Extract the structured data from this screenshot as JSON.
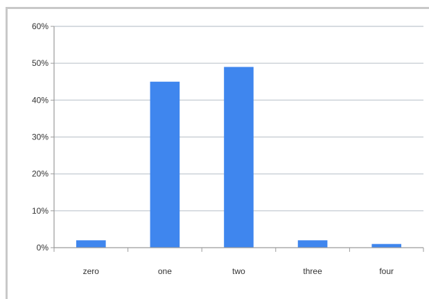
{
  "chart_data": {
    "type": "bar",
    "categories": [
      "zero",
      "one",
      "two",
      "three",
      "four"
    ],
    "values": [
      2,
      45,
      49,
      2,
      1
    ],
    "ytick_labels": [
      "0%",
      "10%",
      "20%",
      "30%",
      "40%",
      "50%",
      "60%"
    ],
    "ylim": [
      0,
      60
    ],
    "grid": true,
    "bar_color": "#3f86ee",
    "grid_color": "#c9cfd6",
    "axis_color": "#9a9a9a"
  }
}
